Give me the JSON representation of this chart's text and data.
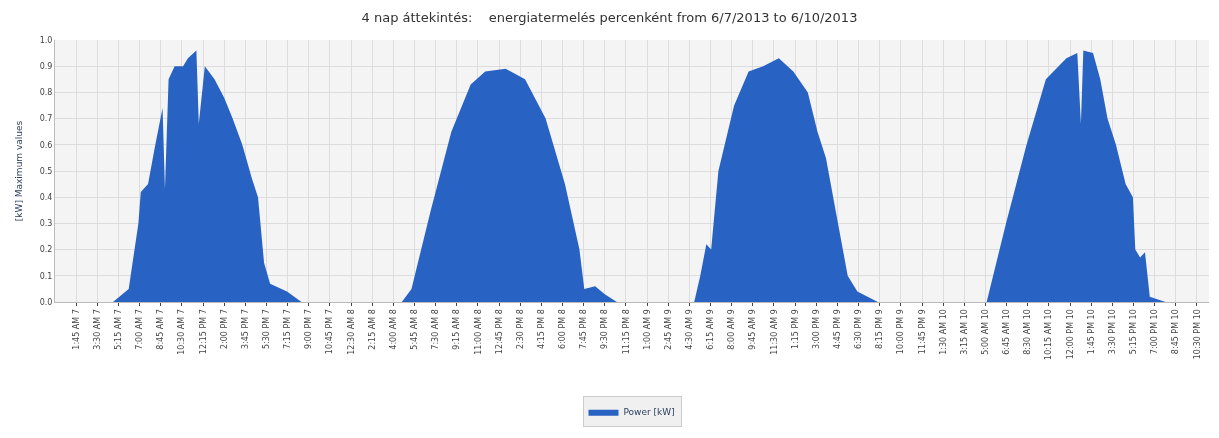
{
  "chart_data": {
    "type": "area",
    "title": "4 nap áttekintés:    energiatermelés percenként from 6/7/2013 to 6/10/2013",
    "ylabel": "[kW] Maximum values",
    "xlim": [
      "2013-06-07T00:00",
      "2013-06-10T23:30"
    ],
    "ylim": [
      0,
      1.0
    ],
    "yticks": [
      {
        "value": 0,
        "label": "0.0"
      },
      0.1,
      0.2,
      0.3,
      0.4,
      0.5,
      0.6,
      0.7,
      0.8,
      0.9,
      {
        "value": 1,
        "label": "1.0"
      }
    ],
    "xticks": [
      {
        "value": "2013-06-07T01:45",
        "label": "1:45 AM 7"
      },
      {
        "value": "2013-06-07T03:30",
        "label": "3:30 AM 7"
      },
      {
        "value": "2013-06-07T05:15",
        "label": "5:15 AM 7"
      },
      {
        "value": "2013-06-07T07:00",
        "label": "7:00 AM 7"
      },
      {
        "value": "2013-06-07T08:45",
        "label": "8:45 AM 7"
      },
      {
        "value": "2013-06-07T10:30",
        "label": "10:30 AM 7"
      },
      {
        "value": "2013-06-07T12:15",
        "label": "12:15 PM 7"
      },
      {
        "value": "2013-06-07T14:00",
        "label": "2:00 PM 7"
      },
      {
        "value": "2013-06-07T15:45",
        "label": "3:45 PM 7"
      },
      {
        "value": "2013-06-07T17:30",
        "label": "5:30 PM 7"
      },
      {
        "value": "2013-06-07T19:15",
        "label": "7:15 PM 7"
      },
      {
        "value": "2013-06-07T21:00",
        "label": "9:00 PM 7"
      },
      {
        "value": "2013-06-07T22:45",
        "label": "10:45 PM 7"
      },
      {
        "value": "2013-06-08T00:30",
        "label": "12:30 AM 8"
      },
      {
        "value": "2013-06-08T02:15",
        "label": "2:15 AM 8"
      },
      {
        "value": "2013-06-08T04:00",
        "label": "4:00 AM 8"
      },
      {
        "value": "2013-06-08T05:45",
        "label": "5:45 AM 8"
      },
      {
        "value": "2013-06-08T07:30",
        "label": "7:30 AM 8"
      },
      {
        "value": "2013-06-08T09:15",
        "label": "9:15 AM 8"
      },
      {
        "value": "2013-06-08T11:00",
        "label": "11:00 AM 8"
      },
      {
        "value": "2013-06-08T12:45",
        "label": "12:45 PM 8"
      },
      {
        "value": "2013-06-08T14:30",
        "label": "2:30 PM 8"
      },
      {
        "value": "2013-06-08T16:15",
        "label": "4:15 PM 8"
      },
      {
        "value": "2013-06-08T18:00",
        "label": "6:00 PM 8"
      },
      {
        "value": "2013-06-08T19:45",
        "label": "7:45 PM 8"
      },
      {
        "value": "2013-06-08T21:30",
        "label": "9:30 PM 8"
      },
      {
        "value": "2013-06-08T23:15",
        "label": "11:15 PM 8"
      },
      {
        "value": "2013-06-09T01:00",
        "label": "1:00 AM 9"
      },
      {
        "value": "2013-06-09T02:45",
        "label": "2:45 AM 9"
      },
      {
        "value": "2013-06-09T04:30",
        "label": "4:30 AM 9"
      },
      {
        "value": "2013-06-09T06:15",
        "label": "6:15 AM 9"
      },
      {
        "value": "2013-06-09T08:00",
        "label": "8:00 AM 9"
      },
      {
        "value": "2013-06-09T09:45",
        "label": "9:45 AM 9"
      },
      {
        "value": "2013-06-09T11:30",
        "label": "11:30 AM 9"
      },
      {
        "value": "2013-06-09T13:15",
        "label": "1:15 PM 9"
      },
      {
        "value": "2013-06-09T15:00",
        "label": "3:00 PM 9"
      },
      {
        "value": "2013-06-09T16:45",
        "label": "4:45 PM 9"
      },
      {
        "value": "2013-06-09T18:30",
        "label": "6:30 PM 9"
      },
      {
        "value": "2013-06-09T20:15",
        "label": "8:15 PM 9"
      },
      {
        "value": "2013-06-09T22:00",
        "label": "10:00 PM 9"
      },
      {
        "value": "2013-06-09T23:45",
        "label": "11:45 PM 9"
      },
      {
        "value": "2013-06-10T01:30",
        "label": "1:30 AM 10"
      },
      {
        "value": "2013-06-10T03:15",
        "label": "3:15 AM 10"
      },
      {
        "value": "2013-06-10T05:00",
        "label": "5:00 AM 10"
      },
      {
        "value": "2013-06-10T06:45",
        "label": "6:45 AM 10"
      },
      {
        "value": "2013-06-10T08:30",
        "label": "8:30 AM 10"
      },
      {
        "value": "2013-06-10T10:15",
        "label": "10:15 AM 10"
      },
      {
        "value": "2013-06-10T12:00",
        "label": "12:00 PM 10"
      },
      {
        "value": "2013-06-10T13:45",
        "label": "1:45 PM 10"
      },
      {
        "value": "2013-06-10T15:30",
        "label": "3:30 PM 10"
      },
      {
        "value": "2013-06-10T17:15",
        "label": "5:15 PM 10"
      },
      {
        "value": "2013-06-10T19:00",
        "label": "7:00 PM 10"
      },
      {
        "value": "2013-06-10T20:45",
        "label": "8:45 PM 10"
      },
      {
        "value": "2013-06-10T22:30",
        "label": "10:30 PM 10"
      }
    ],
    "x": [
      "2013-06-07T00:00",
      "2013-06-07T04:48",
      "2013-06-07T06:06",
      "2013-06-07T06:54",
      "2013-06-07T07:06",
      "2013-06-07T07:42",
      "2013-06-07T08:18",
      "2013-06-07T08:54",
      "2013-06-07T09:06",
      "2013-06-07T09:24",
      "2013-06-07T09:54",
      "2013-06-07T10:36",
      "2013-06-07T11:00",
      "2013-06-07T11:42",
      "2013-06-07T11:54",
      "2013-06-07T12:24",
      "2013-06-07T13:12",
      "2013-06-07T14:00",
      "2013-06-07T14:42",
      "2013-06-07T15:30",
      "2013-06-07T16:18",
      "2013-06-07T16:48",
      "2013-06-07T17:18",
      "2013-06-07T17:48",
      "2013-06-07T19:12",
      "2013-06-07T20:24",
      "2013-06-08T04:42",
      "2013-06-08T05:30",
      "2013-06-08T07:06",
      "2013-06-08T08:48",
      "2013-06-08T10:24",
      "2013-06-08T11:36",
      "2013-06-08T13:18",
      "2013-06-08T14:54",
      "2013-06-08T16:36",
      "2013-06-08T18:12",
      "2013-06-08T19:24",
      "2013-06-08T19:48",
      "2013-06-08T20:42",
      "2013-06-08T21:30",
      "2013-06-08T22:30",
      "2013-06-09T04:54",
      "2013-06-09T05:24",
      "2013-06-09T05:54",
      "2013-06-09T06:18",
      "2013-06-09T06:54",
      "2013-06-09T08:12",
      "2013-06-09T09:24",
      "2013-06-09T10:36",
      "2013-06-09T11:54",
      "2013-06-09T13:06",
      "2013-06-09T14:18",
      "2013-06-09T15:06",
      "2013-06-09T15:48",
      "2013-06-09T16:48",
      "2013-06-09T17:36",
      "2013-06-09T18:24",
      "2013-06-09T20:06",
      "2013-06-10T05:06",
      "2013-06-10T06:42",
      "2013-06-10T08:24",
      "2013-06-10T10:00",
      "2013-06-10T11:42",
      "2013-06-10T12:36",
      "2013-06-10T12:54",
      "2013-06-10T13:06",
      "2013-06-10T13:54",
      "2013-06-10T14:30",
      "2013-06-10T15:06",
      "2013-06-10T15:48",
      "2013-06-10T16:36",
      "2013-06-10T17:12",
      "2013-06-10T17:24",
      "2013-06-10T17:48",
      "2013-06-10T18:12",
      "2013-06-10T18:36",
      "2013-06-10T19:54",
      "2013-06-10T23:00"
    ],
    "series": [
      {
        "name": "Power [kW]",
        "color": "#2862c2",
        "values": [
          0,
          0,
          0.05,
          0.3,
          0.42,
          0.45,
          0.6,
          0.74,
          0.43,
          0.85,
          0.9,
          0.9,
          0.93,
          0.96,
          0.68,
          0.9,
          0.85,
          0.78,
          0.7,
          0.6,
          0.47,
          0.4,
          0.15,
          0.07,
          0.04,
          0,
          0,
          0.05,
          0.35,
          0.65,
          0.83,
          0.88,
          0.89,
          0.85,
          0.7,
          0.45,
          0.2,
          0.05,
          0.06,
          0.03,
          0,
          0,
          0.1,
          0.22,
          0.2,
          0.5,
          0.75,
          0.88,
          0.9,
          0.93,
          0.88,
          0.8,
          0.65,
          0.55,
          0.3,
          0.1,
          0.04,
          0,
          0,
          0.3,
          0.6,
          0.85,
          0.93,
          0.95,
          0.68,
          0.96,
          0.95,
          0.85,
          0.7,
          0.6,
          0.45,
          0.4,
          0.2,
          0.17,
          0.19,
          0.02,
          0,
          0
        ]
      }
    ],
    "grid": true,
    "legend": "bottom"
  }
}
